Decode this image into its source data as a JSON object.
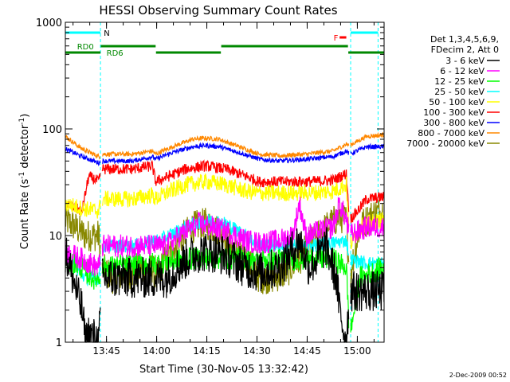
{
  "chart_data": {
    "type": "line",
    "title": "HESSI Observing Summary Count Rates",
    "xlabel": "Start Time (30-Nov-05 13:32:42)",
    "ylabel_main": "Count Rate (s",
    "ylabel_sup1": "-1",
    "ylabel_mid": " detector",
    "ylabel_sup2": "-1",
    "ylabel_end": ")",
    "yscale": "log",
    "ylim": [
      1,
      1000
    ],
    "xlim_minutes": [
      0,
      95.3
    ],
    "x_ticks": [
      {
        "label": "13:45",
        "minute": 12.3
      },
      {
        "label": "14:00",
        "minute": 27.3
      },
      {
        "label": "14:15",
        "minute": 42.3
      },
      {
        "label": "14:30",
        "minute": 57.3
      },
      {
        "label": "14:45",
        "minute": 72.3
      },
      {
        "label": "15:00",
        "minute": 87.3
      }
    ],
    "y_ticks": [
      {
        "label": "1",
        "value": 1
      },
      {
        "label": "10",
        "value": 10
      },
      {
        "label": "100",
        "value": 100
      },
      {
        "label": "1000",
        "value": 1000
      }
    ],
    "legend_header": [
      "Det 1,3,4,5,6,9,",
      "FDecim 2, Att 0"
    ],
    "legend_position": "right-top",
    "gaps": [
      [
        10.5,
        11.0
      ],
      [
        84.8,
        85.3
      ]
    ],
    "series": [
      {
        "name": "3 - 6 keV",
        "color": "#000000",
        "points": [
          [
            0,
            7
          ],
          [
            5,
            2
          ],
          [
            6,
            1
          ],
          [
            7,
            1.2
          ],
          [
            10,
            1
          ],
          [
            11,
            4
          ],
          [
            12,
            4
          ],
          [
            20,
            4
          ],
          [
            26,
            4
          ],
          [
            27,
            4
          ],
          [
            30,
            4
          ],
          [
            36,
            6
          ],
          [
            40,
            7
          ],
          [
            44,
            7
          ],
          [
            48,
            6.5
          ],
          [
            54,
            5
          ],
          [
            58,
            4.5
          ],
          [
            64,
            5
          ],
          [
            70,
            9
          ],
          [
            73,
            5
          ],
          [
            78,
            8
          ],
          [
            81,
            4
          ],
          [
            82,
            2
          ],
          [
            84,
            1
          ],
          [
            85,
            3
          ],
          [
            86,
            3
          ],
          [
            95,
            3
          ]
        ]
      },
      {
        "name": "6 - 12 keV",
        "color": "#ff00ff",
        "points": [
          [
            0,
            7
          ],
          [
            5,
            6
          ],
          [
            10,
            5
          ],
          [
            11,
            8
          ],
          [
            20,
            8
          ],
          [
            27,
            8
          ],
          [
            30,
            8
          ],
          [
            36,
            11
          ],
          [
            40,
            13
          ],
          [
            44,
            12
          ],
          [
            48,
            11
          ],
          [
            54,
            9
          ],
          [
            58,
            8.5
          ],
          [
            64,
            9
          ],
          [
            68,
            10
          ],
          [
            70,
            20
          ],
          [
            72,
            10
          ],
          [
            80,
            12
          ],
          [
            82,
            20
          ],
          [
            84,
            14
          ],
          [
            85,
            10
          ],
          [
            90,
            12
          ],
          [
            95,
            12
          ]
        ]
      },
      {
        "name": "12 - 25 keV",
        "color": "#00ff00",
        "points": [
          [
            0,
            6
          ],
          [
            5,
            5
          ],
          [
            8,
            4
          ],
          [
            10,
            4
          ],
          [
            11,
            5
          ],
          [
            27,
            5.5
          ],
          [
            36,
            6
          ],
          [
            44,
            6.2
          ],
          [
            54,
            6
          ],
          [
            58,
            6
          ],
          [
            70,
            6
          ],
          [
            80,
            6
          ],
          [
            84,
            5
          ],
          [
            85,
            1.1
          ],
          [
            88,
            4
          ],
          [
            95,
            5
          ]
        ]
      },
      {
        "name": "25 - 50 keV",
        "color": "#00ffff",
        "points": [
          [
            0,
            7
          ],
          [
            3,
            5
          ],
          [
            6,
            4
          ],
          [
            10,
            4
          ],
          [
            11,
            8
          ],
          [
            20,
            8
          ],
          [
            27,
            9
          ],
          [
            28,
            9
          ],
          [
            36,
            12
          ],
          [
            42,
            14
          ],
          [
            48,
            13
          ],
          [
            54,
            10
          ],
          [
            58,
            8
          ],
          [
            64,
            8
          ],
          [
            72,
            8
          ],
          [
            80,
            8.5
          ],
          [
            84,
            9
          ],
          [
            85,
            6
          ],
          [
            90,
            5.5
          ],
          [
            95,
            5.5
          ]
        ]
      },
      {
        "name": "50 - 100 keV",
        "color": "#ffff00",
        "points": [
          [
            0,
            20
          ],
          [
            5,
            18
          ],
          [
            10,
            17
          ],
          [
            11,
            22
          ],
          [
            20,
            22
          ],
          [
            26,
            24
          ],
          [
            27,
            22
          ],
          [
            30,
            25
          ],
          [
            36,
            30
          ],
          [
            42,
            32
          ],
          [
            48,
            30
          ],
          [
            54,
            26
          ],
          [
            58,
            25
          ],
          [
            64,
            25
          ],
          [
            72,
            25
          ],
          [
            80,
            26
          ],
          [
            84,
            30
          ],
          [
            85,
            8
          ],
          [
            88,
            12
          ],
          [
            90,
            13
          ],
          [
            95,
            14
          ]
        ]
      },
      {
        "name": "100 - 300 keV",
        "color": "#ff0000",
        "points": [
          [
            0,
            20
          ],
          [
            3,
            18
          ],
          [
            5,
            17
          ],
          [
            7,
            36
          ],
          [
            10,
            32
          ],
          [
            11,
            42
          ],
          [
            20,
            42
          ],
          [
            26,
            45
          ],
          [
            27,
            32
          ],
          [
            30,
            35
          ],
          [
            36,
            42
          ],
          [
            42,
            45
          ],
          [
            48,
            42
          ],
          [
            54,
            36
          ],
          [
            58,
            32
          ],
          [
            64,
            32
          ],
          [
            72,
            32
          ],
          [
            80,
            33
          ],
          [
            84,
            38
          ],
          [
            85,
            14
          ],
          [
            88,
            18
          ],
          [
            90,
            22
          ],
          [
            95,
            23
          ]
        ]
      },
      {
        "name": "300 - 800 keV",
        "color": "#0000ff",
        "points": [
          [
            0,
            65
          ],
          [
            5,
            55
          ],
          [
            10,
            48
          ],
          [
            11,
            50
          ],
          [
            20,
            50
          ],
          [
            26,
            55
          ],
          [
            27,
            52
          ],
          [
            32,
            60
          ],
          [
            38,
            68
          ],
          [
            42,
            70
          ],
          [
            46,
            68
          ],
          [
            52,
            60
          ],
          [
            58,
            52
          ],
          [
            64,
            50
          ],
          [
            72,
            52
          ],
          [
            80,
            55
          ],
          [
            84,
            62
          ],
          [
            85,
            58
          ],
          [
            90,
            68
          ],
          [
            95,
            68
          ]
        ]
      },
      {
        "name": "800 - 7000 keV",
        "color": "#ff8800",
        "points": [
          [
            0,
            85
          ],
          [
            5,
            65
          ],
          [
            10,
            55
          ],
          [
            11,
            58
          ],
          [
            20,
            58
          ],
          [
            26,
            62
          ],
          [
            27,
            58
          ],
          [
            32,
            68
          ],
          [
            38,
            80
          ],
          [
            42,
            82
          ],
          [
            46,
            80
          ],
          [
            52,
            68
          ],
          [
            58,
            58
          ],
          [
            64,
            56
          ],
          [
            72,
            58
          ],
          [
            80,
            62
          ],
          [
            84,
            72
          ],
          [
            85,
            70
          ],
          [
            90,
            85
          ],
          [
            95,
            88
          ]
        ]
      },
      {
        "name": "7000 - 20000 keV",
        "color": "#888800",
        "points": [
          [
            0,
            14
          ],
          [
            3,
            12
          ],
          [
            6,
            10
          ],
          [
            10,
            10
          ],
          [
            11,
            5
          ],
          [
            14,
            4
          ],
          [
            20,
            4.5
          ],
          [
            26,
            5
          ],
          [
            27,
            4
          ],
          [
            30,
            6
          ],
          [
            34,
            9
          ],
          [
            38,
            12
          ],
          [
            42,
            13
          ],
          [
            46,
            11
          ],
          [
            50,
            8
          ],
          [
            54,
            6
          ],
          [
            58,
            4
          ],
          [
            62,
            4
          ],
          [
            66,
            4.5
          ],
          [
            70,
            6
          ],
          [
            74,
            9
          ],
          [
            78,
            12
          ],
          [
            82,
            15
          ],
          [
            84,
            14
          ],
          [
            85,
            4
          ],
          [
            88,
            12
          ],
          [
            92,
            16
          ],
          [
            95,
            17
          ]
        ]
      }
    ],
    "annotations": {
      "cyan_label": "N",
      "red_label": "F",
      "rd_labels": [
        "RD0",
        "RD6"
      ],
      "cyan_bars": [
        [
          0,
          10.5
        ],
        [
          85.3,
          93.5
        ]
      ],
      "red_bar": [
        82.0,
        84.0
      ],
      "green_bars": [
        [
          0,
          10.5
        ],
        [
          10.6,
          27.0
        ],
        [
          27.1,
          46.5
        ],
        [
          46.6,
          84.5
        ],
        [
          84.6,
          95.3
        ]
      ]
    }
  },
  "footer": {
    "timestamp": "2-Dec-2009 00:52"
  }
}
